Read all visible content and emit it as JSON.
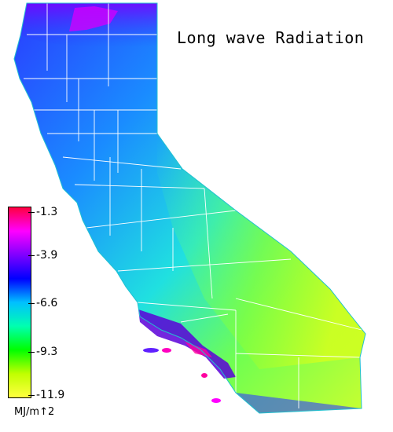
{
  "map": {
    "title": "Long wave Radiation",
    "region": "California"
  },
  "legend": {
    "units": "MJ/m↑2",
    "ticks": [
      "-1.3",
      "-3.9",
      "-6.6",
      "-9.3",
      "-11.9"
    ],
    "colors": [
      "#ff0040",
      "#ff00ff",
      "#8000ff",
      "#0000ff",
      "#00c0ff",
      "#00ffb0",
      "#00ff00",
      "#c0ff00",
      "#ffff40"
    ]
  }
}
